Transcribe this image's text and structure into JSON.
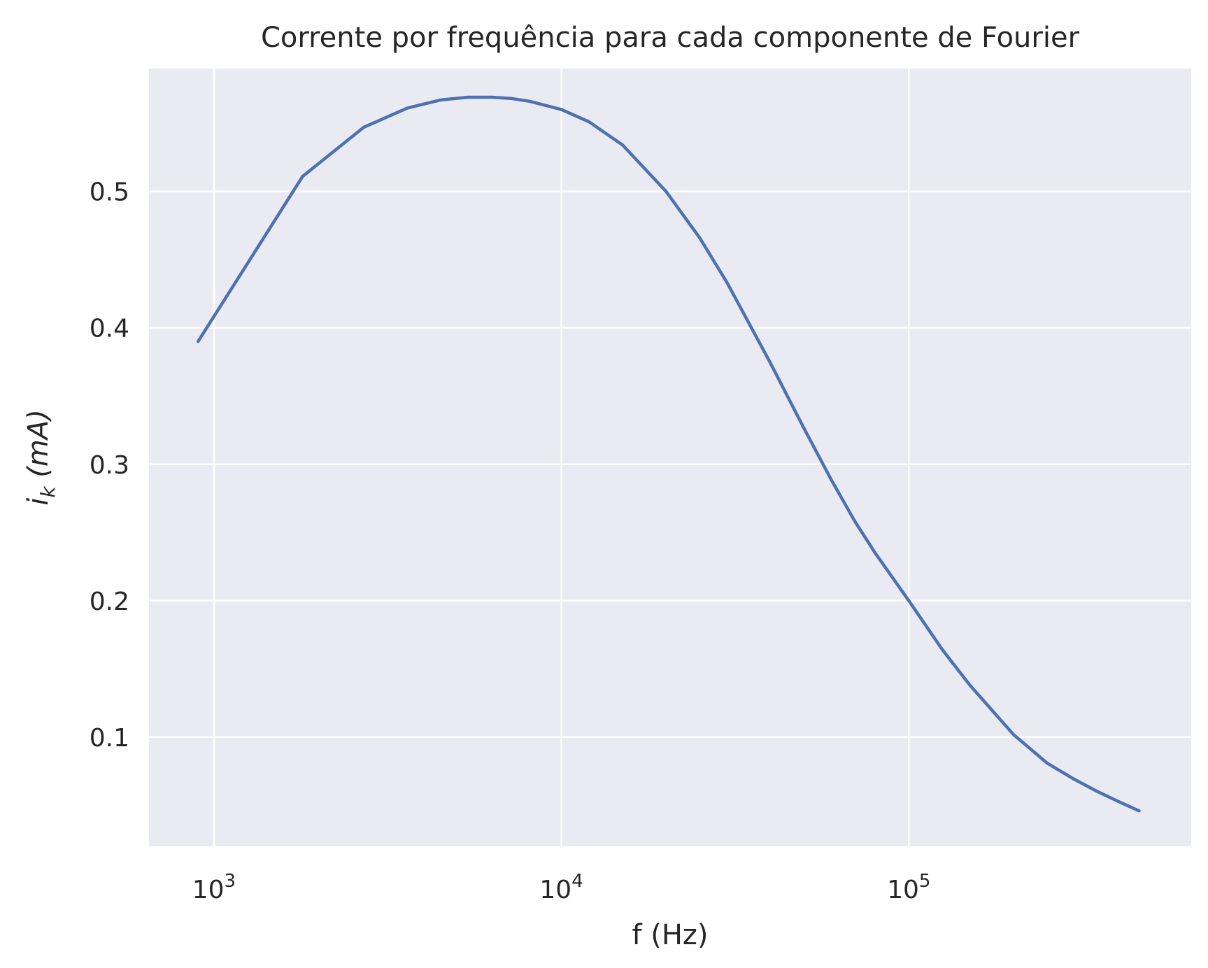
{
  "chart_data": {
    "type": "line",
    "title": "Corrente por frequência para cada componente de Fourier",
    "xlabel": "f (Hz)",
    "ylabel": {
      "main": "i",
      "sub": "k",
      "rest": " (mA)"
    },
    "xscale": "log",
    "xlim": [
      650,
      650000
    ],
    "ylim": [
      0.02,
      0.59
    ],
    "grid": true,
    "background": "#EAEAF2",
    "line_color": "#4C72B0",
    "xticks": [
      {
        "value": 1000,
        "base": "10",
        "exp": "3"
      },
      {
        "value": 10000,
        "base": "10",
        "exp": "4"
      },
      {
        "value": 100000,
        "base": "10",
        "exp": "5"
      }
    ],
    "yticks": [
      {
        "value": 0.1,
        "label": "0.1"
      },
      {
        "value": 0.2,
        "label": "0.2"
      },
      {
        "value": 0.3,
        "label": "0.3"
      },
      {
        "value": 0.4,
        "label": "0.4"
      },
      {
        "value": 0.5,
        "label": "0.5"
      }
    ],
    "series": [
      {
        "x": [
          900,
          1800,
          2700,
          3600,
          4500,
          5400,
          6300,
          7200,
          8100,
          9000,
          10000,
          12000,
          15000,
          20000,
          25000,
          30000,
          40000,
          50000,
          60000,
          70000,
          80000,
          100000,
          125000,
          150000,
          200000,
          250000,
          300000,
          350000,
          400000,
          460000
        ],
        "y": [
          0.39,
          0.511,
          0.547,
          0.561,
          0.567,
          0.569,
          0.569,
          0.568,
          0.566,
          0.563,
          0.56,
          0.551,
          0.534,
          0.5,
          0.466,
          0.433,
          0.374,
          0.326,
          0.288,
          0.258,
          0.235,
          0.2,
          0.164,
          0.138,
          0.102,
          0.081,
          0.069,
          0.06,
          0.053,
          0.046
        ]
      }
    ]
  }
}
